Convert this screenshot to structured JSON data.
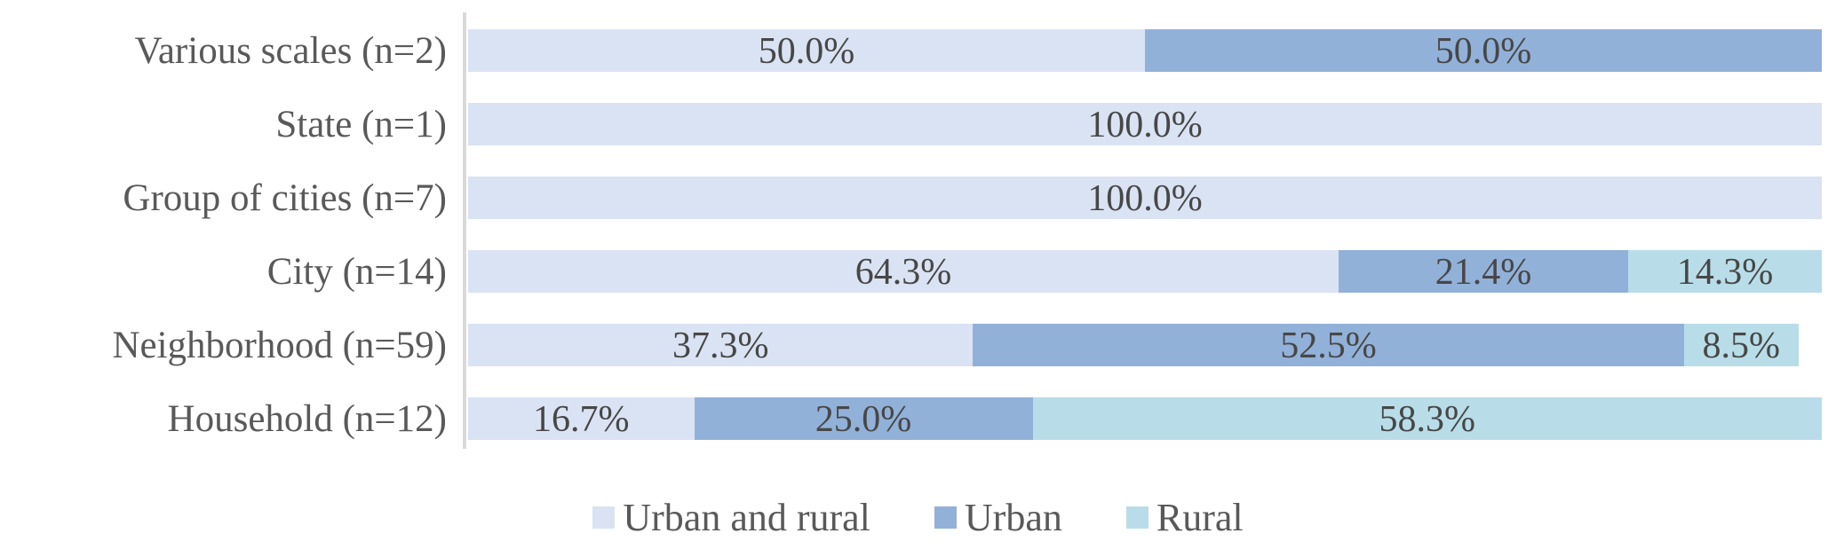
{
  "chart_data": {
    "type": "bar",
    "orientation": "horizontal",
    "stacked": true,
    "unit": "percent",
    "title": "",
    "xlabel": "",
    "ylabel": "",
    "xlim": [
      0,
      100
    ],
    "grid": false,
    "categories": [
      "Various scales (n=2)",
      "State (n=1)",
      "Group of cities (n=7)",
      "City (n=14)",
      "Neighborhood (n=59)",
      "Household (n=12)"
    ],
    "series": [
      {
        "name": "Urban and rural",
        "key": "urban-and-rural",
        "color": "#dae3f3",
        "values": [
          50.0,
          100.0,
          100.0,
          64.3,
          37.3,
          16.7
        ]
      },
      {
        "name": "Urban",
        "key": "urban",
        "color": "#92b1d9",
        "values": [
          50.0,
          0,
          0,
          21.4,
          52.5,
          25.0
        ]
      },
      {
        "name": "Rural",
        "key": "rural",
        "color": "#b8dde9",
        "values": [
          0,
          0,
          0,
          14.3,
          8.5,
          58.3
        ]
      }
    ],
    "data_labels": [
      [
        "50.0%",
        "50.0%",
        ""
      ],
      [
        "100.0%",
        "",
        ""
      ],
      [
        "100.0%",
        "",
        ""
      ],
      [
        "64.3%",
        "21.4%",
        "14.3%"
      ],
      [
        "37.3%",
        "52.5%",
        "8.5%"
      ],
      [
        "16.7%",
        "25.0%",
        "58.3%"
      ]
    ],
    "legend": {
      "position": "bottom",
      "entries": [
        "Urban and rural",
        "Urban",
        "Rural"
      ]
    }
  },
  "colors": {
    "axis_line": "#d9d9d9",
    "category_text": "#595959",
    "data_label_text": "#474747",
    "legend_text": "#595959",
    "background": "#ffffff"
  }
}
